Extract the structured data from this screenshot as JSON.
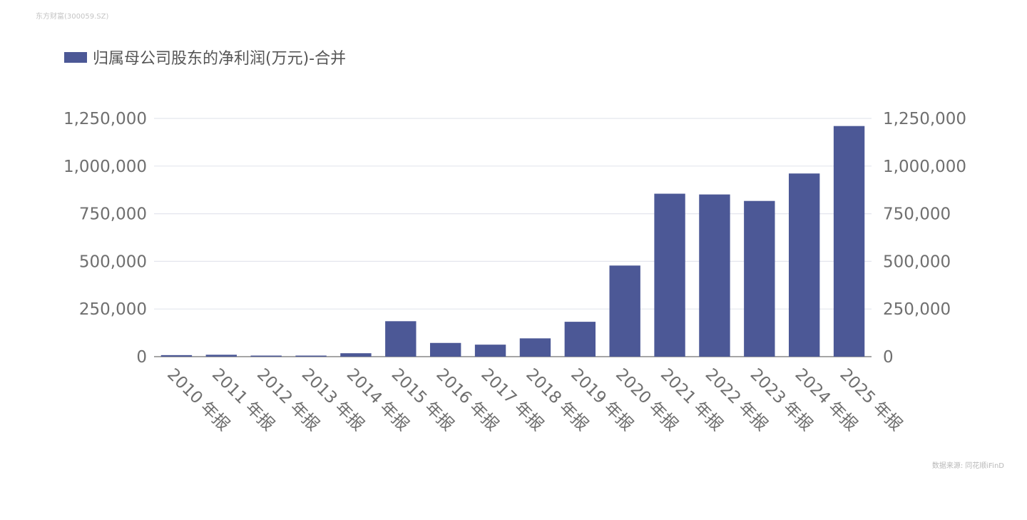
{
  "watermark": "东方财富(300059.SZ)",
  "source": "数据来源: 同花顺iFinD",
  "colors": {
    "bar": "#4c5896",
    "grid": "#e4e6ee",
    "axis": "#888888",
    "text": "#6f6f6f"
  },
  "chart_data": {
    "type": "bar",
    "title": "",
    "xlabel": "",
    "ylabel": "",
    "legend": {
      "position": "top-left",
      "entries": [
        "归属母公司股东的净利润(万元)-合并"
      ]
    },
    "categories": [
      "2010 年报",
      "2011 年报",
      "2012 年报",
      "2013 年报",
      "2014 年报",
      "2015 年报",
      "2016 年报",
      "2017 年报",
      "2018 年报",
      "2019 年报",
      "2020 年报",
      "2021 年报",
      "2022 年报",
      "2023 年报",
      "2024 年报",
      "2025 年报"
    ],
    "series": [
      {
        "name": "归属母公司股东的净利润(万元)-合并",
        "values": [
          8000,
          10000,
          5000,
          1000,
          18000,
          186000,
          72000,
          63000,
          96000,
          183000,
          478000,
          855000,
          851000,
          817000,
          961000,
          1210000
        ]
      }
    ],
    "ylim": [
      0,
      1250000
    ],
    "yticks": [
      0,
      250000,
      500000,
      750000,
      1000000,
      1250000
    ],
    "ytick_labels": [
      "0",
      "250,000",
      "500,000",
      "750,000",
      "1,000,000",
      "1,250,000"
    ],
    "dual_y_axis": true,
    "grid": true
  }
}
